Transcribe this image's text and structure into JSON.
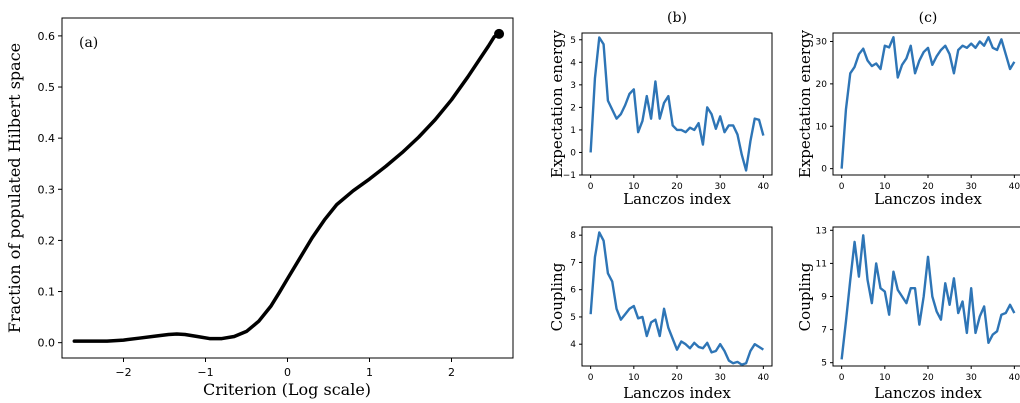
{
  "chart_data": [
    {
      "id": "a",
      "type": "line",
      "panel_label": "(a)",
      "xlabel": "Criterion (Log scale)",
      "ylabel": "Fraction of populated Hilbert space",
      "xlim": [
        -2.75,
        2.75
      ],
      "ylim": [
        -0.03,
        0.635
      ],
      "xticks": [
        -2,
        -1,
        0,
        1,
        2
      ],
      "yticks": [
        0.0,
        0.1,
        0.2,
        0.3,
        0.4,
        0.5,
        0.6
      ],
      "ytick_labels": [
        "0.0",
        "0.1",
        "0.2",
        "0.3",
        "0.4",
        "0.5",
        "0.6"
      ],
      "color": "#000000",
      "series": [
        {
          "x": [
            -2.6,
            -2.4,
            -2.2,
            -2.0,
            -1.8,
            -1.6,
            -1.45,
            -1.35,
            -1.25,
            -1.1,
            -0.95,
            -0.8,
            -0.65,
            -0.5,
            -0.35,
            -0.2,
            -0.1,
            0.0,
            0.15,
            0.3,
            0.45,
            0.6,
            0.8,
            1.0,
            1.2,
            1.4,
            1.6,
            1.8,
            2.0,
            2.2,
            2.35,
            2.45,
            2.52,
            2.58
          ],
          "y": [
            0.003,
            0.003,
            0.003,
            0.005,
            0.009,
            0.013,
            0.016,
            0.017,
            0.016,
            0.012,
            0.008,
            0.008,
            0.012,
            0.022,
            0.042,
            0.072,
            0.098,
            0.125,
            0.165,
            0.205,
            0.24,
            0.27,
            0.297,
            0.32,
            0.345,
            0.372,
            0.402,
            0.436,
            0.475,
            0.52,
            0.556,
            0.58,
            0.598,
            0.604
          ]
        }
      ]
    },
    {
      "id": "b-top",
      "type": "line",
      "panel_label": "(b)",
      "xlabel": "Lanczos index",
      "ylabel": "Expectation energy",
      "xlim": [
        -2,
        42
      ],
      "ylim": [
        -1,
        5.3
      ],
      "xticks": [
        0,
        10,
        20,
        30,
        40
      ],
      "yticks": [
        -1,
        0,
        1,
        2,
        3,
        4,
        5
      ],
      "ytick_labels": [
        "−1",
        "0",
        "1",
        "2",
        "3",
        "4",
        "5"
      ],
      "color": "#2e75b6",
      "series": [
        {
          "x": [
            0,
            1,
            2,
            3,
            4,
            5,
            6,
            7,
            8,
            9,
            10,
            11,
            12,
            13,
            14,
            15,
            16,
            17,
            18,
            19,
            20,
            21,
            22,
            23,
            24,
            25,
            26,
            27,
            28,
            29,
            30,
            31,
            32,
            33,
            34,
            35,
            36,
            37,
            38,
            39,
            40
          ],
          "y": [
            0.0,
            3.3,
            5.1,
            4.8,
            2.3,
            1.9,
            1.5,
            1.7,
            2.1,
            2.6,
            2.8,
            0.9,
            1.4,
            2.5,
            1.5,
            3.15,
            1.5,
            2.2,
            2.5,
            1.2,
            1.0,
            1.0,
            0.9,
            1.1,
            1.0,
            1.3,
            0.35,
            2.0,
            1.7,
            1.05,
            1.6,
            0.9,
            1.2,
            1.2,
            0.8,
            -0.1,
            -0.8,
            0.5,
            1.5,
            1.45,
            0.75
          ]
        }
      ]
    },
    {
      "id": "b-bottom",
      "type": "line",
      "xlabel": "Lanczos index",
      "ylabel": "Coupling",
      "xlim": [
        -2,
        42
      ],
      "ylim": [
        3.2,
        8.3
      ],
      "xticks": [
        0,
        10,
        20,
        30,
        40
      ],
      "yticks": [
        4,
        5,
        6,
        7,
        8
      ],
      "ytick_labels": [
        "4",
        "5",
        "6",
        "7",
        "8"
      ],
      "color": "#2e75b6",
      "series": [
        {
          "x": [
            0,
            1,
            2,
            3,
            4,
            5,
            6,
            7,
            8,
            9,
            10,
            11,
            12,
            13,
            14,
            15,
            16,
            17,
            18,
            19,
            20,
            21,
            22,
            23,
            24,
            25,
            26,
            27,
            28,
            29,
            30,
            31,
            32,
            33,
            34,
            35,
            36,
            37,
            38,
            39,
            40
          ],
          "y": [
            5.1,
            7.2,
            8.1,
            7.8,
            6.6,
            6.3,
            5.3,
            4.9,
            5.1,
            5.3,
            5.4,
            4.95,
            5.0,
            4.3,
            4.8,
            4.9,
            4.3,
            5.3,
            4.6,
            4.2,
            3.8,
            4.1,
            4.0,
            3.85,
            4.05,
            3.9,
            3.85,
            4.05,
            3.7,
            3.75,
            4.0,
            3.75,
            3.4,
            3.3,
            3.35,
            3.25,
            3.3,
            3.75,
            4.0,
            3.9,
            3.8
          ]
        }
      ]
    },
    {
      "id": "c-top",
      "type": "line",
      "panel_label": "(c)",
      "xlabel": "Lanczos index",
      "ylabel": "Expectation energy",
      "xlim": [
        -2,
        42
      ],
      "ylim": [
        -1.5,
        32
      ],
      "xticks": [
        0,
        10,
        20,
        30,
        40
      ],
      "yticks": [
        0,
        10,
        20,
        30
      ],
      "ytick_labels": [
        "0",
        "10",
        "20",
        "30"
      ],
      "color": "#2e75b6",
      "series": [
        {
          "x": [
            0,
            1,
            2,
            3,
            4,
            5,
            6,
            7,
            8,
            9,
            10,
            11,
            12,
            13,
            14,
            15,
            16,
            17,
            18,
            19,
            20,
            21,
            22,
            23,
            24,
            25,
            26,
            27,
            28,
            29,
            30,
            31,
            32,
            33,
            34,
            35,
            36,
            37,
            38,
            39,
            40
          ],
          "y": [
            0.0,
            14.0,
            22.5,
            24.0,
            27.0,
            28.3,
            25.5,
            24.2,
            24.8,
            23.5,
            29.0,
            28.6,
            31.0,
            21.5,
            24.5,
            26.0,
            29.0,
            22.5,
            25.5,
            27.5,
            28.5,
            24.5,
            26.5,
            28.0,
            29.0,
            27.0,
            22.5,
            28.0,
            29.0,
            28.5,
            29.5,
            28.5,
            30.0,
            29.0,
            31.0,
            28.5,
            28.0,
            30.5,
            27.0,
            23.5,
            25.2
          ]
        }
      ]
    },
    {
      "id": "c-bottom",
      "type": "line",
      "xlabel": "Lanczos index",
      "ylabel": "Coupling",
      "xlim": [
        -2,
        42
      ],
      "ylim": [
        4.8,
        13.2
      ],
      "xticks": [
        0,
        10,
        20,
        30,
        40
      ],
      "yticks": [
        5,
        7,
        9,
        11,
        13
      ],
      "ytick_labels": [
        "5",
        "7",
        "9",
        "11",
        "13"
      ],
      "color": "#2e75b6",
      "series": [
        {
          "x": [
            0,
            1,
            2,
            3,
            4,
            5,
            6,
            7,
            8,
            9,
            10,
            11,
            12,
            13,
            14,
            15,
            16,
            17,
            18,
            19,
            20,
            21,
            22,
            23,
            24,
            25,
            26,
            27,
            28,
            29,
            30,
            31,
            32,
            33,
            34,
            35,
            36,
            37,
            38,
            39,
            40
          ],
          "y": [
            5.2,
            7.5,
            10.0,
            12.3,
            10.2,
            12.7,
            10.0,
            8.6,
            11.0,
            9.5,
            9.3,
            7.9,
            10.5,
            9.4,
            9.0,
            8.6,
            9.5,
            9.5,
            7.3,
            9.0,
            11.4,
            9.0,
            8.1,
            7.6,
            9.8,
            8.5,
            10.1,
            8.0,
            8.7,
            6.8,
            9.5,
            6.8,
            7.8,
            8.4,
            6.2,
            6.7,
            6.9,
            7.9,
            8.0,
            8.5,
            8.0
          ]
        }
      ]
    }
  ]
}
